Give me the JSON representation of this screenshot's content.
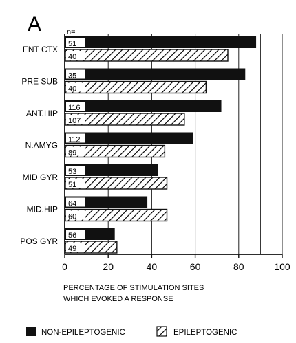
{
  "chart_data": {
    "type": "bar",
    "panel_label": "A",
    "n_header": "n=",
    "categories": [
      "ENT CTX",
      "PRE SUB",
      "ANT.HIP",
      "N.AMYG",
      "MID GYR",
      "MID.HIP",
      "POS GYR"
    ],
    "series": [
      {
        "name": "NON-EPILEPTOGENIC",
        "values": [
          88,
          83,
          72,
          59,
          43,
          38,
          23
        ],
        "n": [
          "51",
          "35",
          "116",
          "112",
          "53",
          "64",
          "56"
        ],
        "fill": "solid",
        "color": "#111111"
      },
      {
        "name": "EPILEPTOGENIC",
        "values": [
          75,
          65,
          55,
          46,
          47,
          47,
          24
        ],
        "n": [
          "40",
          "40",
          "107",
          "89",
          "51",
          "60",
          "49"
        ],
        "fill": "hatched",
        "color": "#111111"
      }
    ],
    "xlim": [
      0,
      100
    ],
    "xticks": [
      "0",
      "20",
      "40",
      "60",
      "80",
      "100"
    ],
    "xlabel_lines": [
      "PERCENTAGE OF STIMULATION SITES",
      "WHICH EVOKED A RESPONSE"
    ],
    "vertical_gridlines_at": [
      20,
      40,
      60,
      80,
      90,
      100
    ],
    "legend_position": "bottom"
  }
}
